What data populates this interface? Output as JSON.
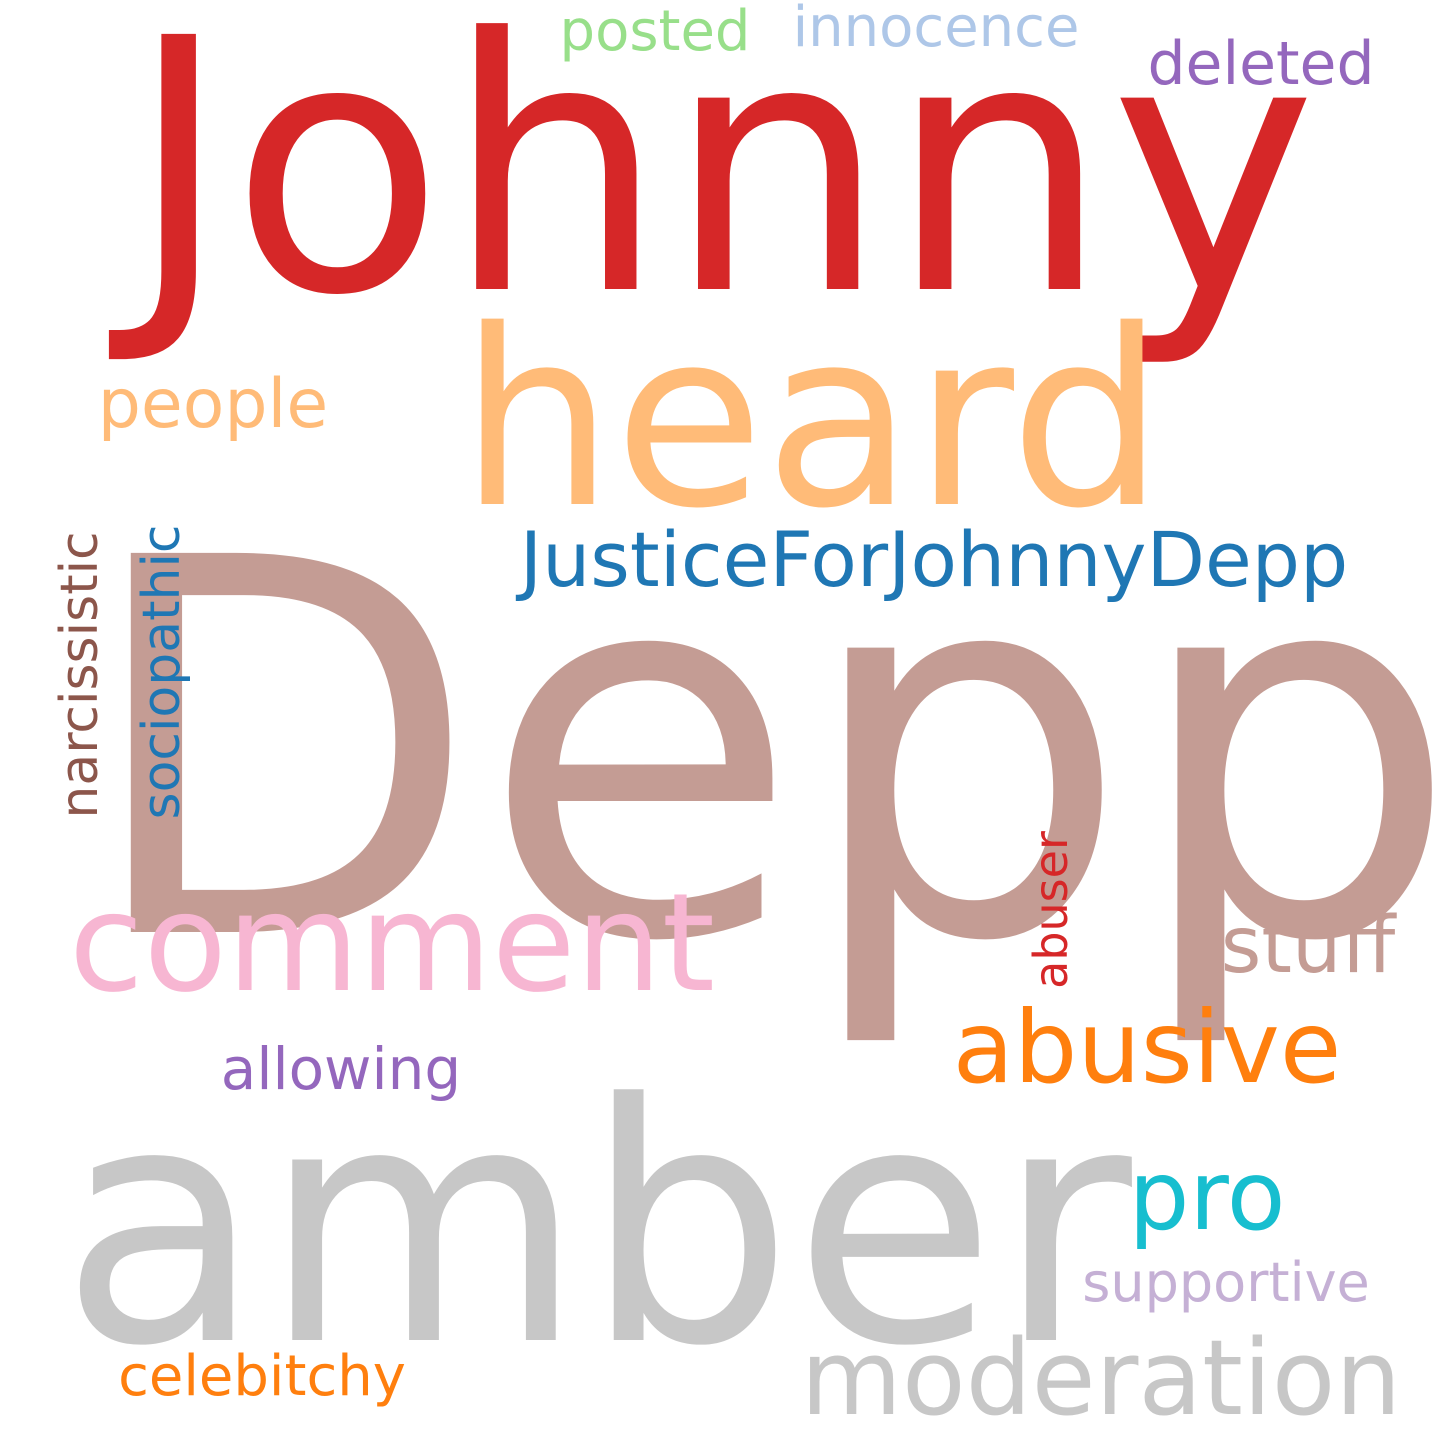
{
  "word_cloud": {
    "words": [
      {
        "text": "Johnny",
        "color": "#d62728"
      },
      {
        "text": "heard",
        "color": "#ffbb78"
      },
      {
        "text": "Depp",
        "color": "#c49c94"
      },
      {
        "text": "amber",
        "color": "#c7c7c7"
      },
      {
        "text": "comment",
        "color": "#f7b6d2"
      },
      {
        "text": "JusticeForJohnnyDepp",
        "color": "#1f77b4"
      },
      {
        "text": "abusive",
        "color": "#ff7f0e"
      },
      {
        "text": "moderation",
        "color": "#c7c7c7"
      },
      {
        "text": "pro",
        "color": "#17becf"
      },
      {
        "text": "stuff",
        "color": "#c49c94"
      },
      {
        "text": "people",
        "color": "#ffbb78"
      },
      {
        "text": "deleted",
        "color": "#9467bd"
      },
      {
        "text": "posted",
        "color": "#98df8a"
      },
      {
        "text": "innocence",
        "color": "#aec7e8"
      },
      {
        "text": "allowing",
        "color": "#9467bd"
      },
      {
        "text": "supportive",
        "color": "#c5b0d5"
      },
      {
        "text": "celebitchy",
        "color": "#ff7f0e"
      },
      {
        "text": "narcissistic",
        "color": "#8c564b"
      },
      {
        "text": "sociopathic",
        "color": "#1f77b4"
      },
      {
        "text": "abuser",
        "color": "#d62728"
      }
    ]
  }
}
